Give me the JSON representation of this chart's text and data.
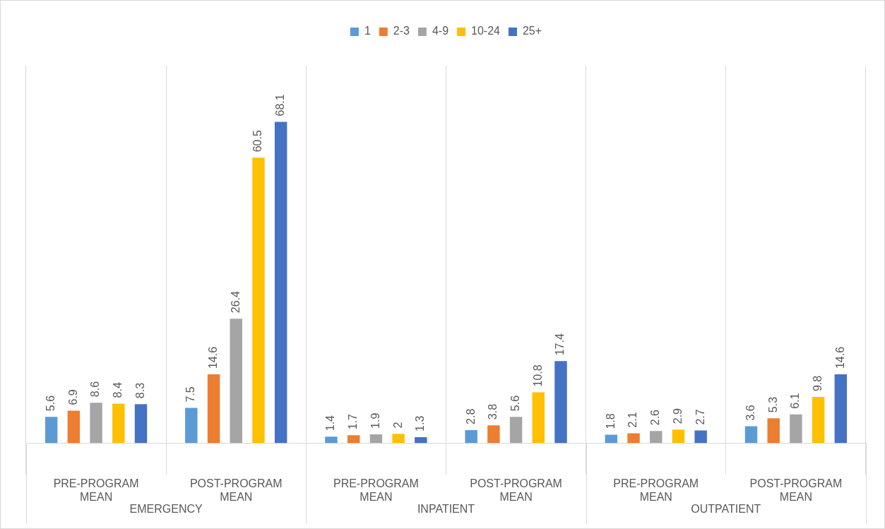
{
  "chart_data": {
    "type": "bar",
    "categories": [
      "PRE-PROGRAM MEAN",
      "POST-PROGRAM MEAN",
      "PRE-PROGRAM MEAN",
      "POST-PROGRAM MEAN",
      "PRE-PROGRAM MEAN",
      "POST-PROGRAM MEAN"
    ],
    "series": [
      {
        "name": "1",
        "color": "#5b9bd5",
        "values": [
          5.6,
          7.5,
          1.4,
          2.8,
          1.8,
          3.6
        ]
      },
      {
        "name": "2-3",
        "color": "#ed7d31",
        "values": [
          6.9,
          14.6,
          1.7,
          3.8,
          2.1,
          5.3
        ]
      },
      {
        "name": "4-9",
        "color": "#a5a5a5",
        "values": [
          8.6,
          26.4,
          1.9,
          5.6,
          2.6,
          6.1
        ]
      },
      {
        "name": "10-24",
        "color": "#ffc000",
        "values": [
          8.4,
          60.5,
          2,
          10.8,
          2.9,
          9.8
        ]
      },
      {
        "name": "25+",
        "color": "#4472c4",
        "values": [
          8.3,
          68.1,
          1.3,
          17.4,
          2.7,
          14.6
        ]
      }
    ],
    "annotations": [
      "EMERGENCY",
      "INPATIENT",
      "OUTPATIENT"
    ],
    "ylim": [
      0,
      80
    ],
    "tick_labels": "x",
    "grid": "x",
    "legend": "top",
    "data_labels": true
  }
}
